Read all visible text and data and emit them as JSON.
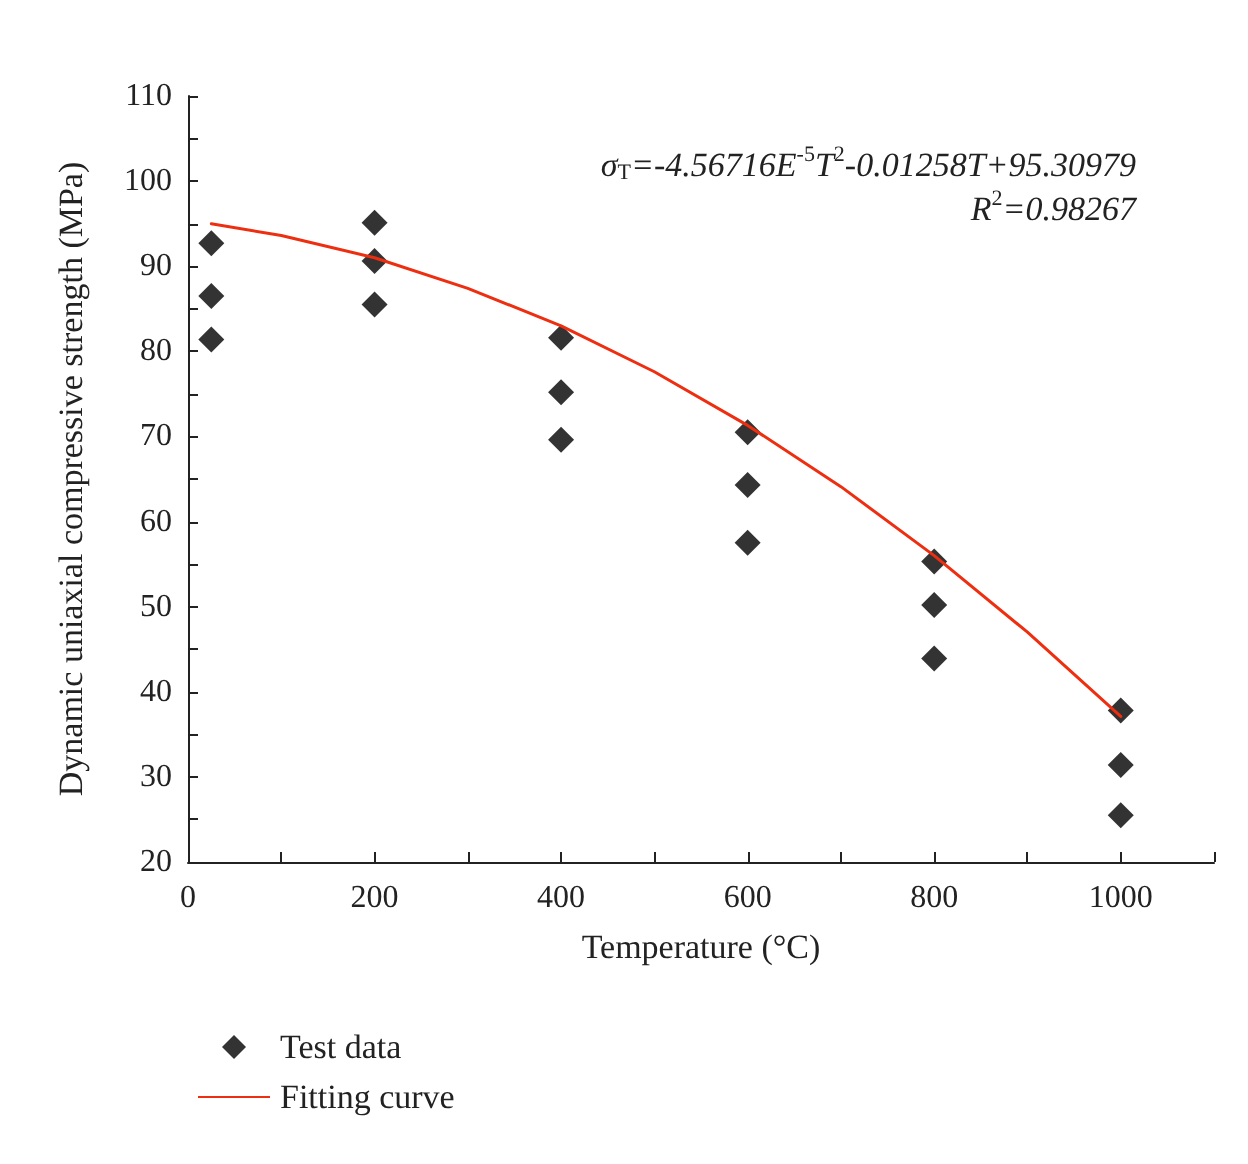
{
  "chart_data": {
    "type": "scatter",
    "xlabel": "Temperature (°C)",
    "ylabel": "Dynamic uniaxial compressive strength (MPa)",
    "xlim": [
      0,
      1100
    ],
    "xticks": [
      0,
      {
        "value": 100,
        "label": null
      },
      200,
      {
        "value": 300,
        "label": null
      },
      400,
      {
        "value": 500,
        "label": null
      },
      600,
      {
        "value": 700,
        "label": null
      },
      800,
      {
        "value": 900,
        "label": null
      },
      1000,
      {
        "value": 1100,
        "label": null
      }
    ],
    "ylim": [
      20,
      110
    ],
    "yticks": [
      20,
      {
        "value": 25,
        "label": null
      },
      30,
      {
        "value": 35,
        "label": null
      },
      40,
      {
        "value": 45,
        "label": null
      },
      50,
      {
        "value": 55,
        "label": null
      },
      60,
      {
        "value": 65,
        "label": null
      },
      70,
      {
        "value": 75,
        "label": null
      },
      80,
      {
        "value": 85,
        "label": null
      },
      90,
      {
        "value": 95,
        "label": null
      },
      100,
      {
        "value": 105,
        "label": null
      },
      110
    ],
    "grid": false,
    "legend": "bottom left",
    "annotations": [
      "σ$_{T}$=-4.56716E$^{-5}$T$^{2}$-0.01258T+95.30979",
      "R$^{2}$=0.98267"
    ],
    "series": [
      {
        "name": "Test data",
        "marker": "diamond",
        "color": "#000000",
        "x": [
          25,
          25,
          25,
          200,
          200,
          200,
          400,
          400,
          400,
          600,
          600,
          600,
          800,
          800,
          800,
          1000,
          1000,
          1000
        ],
        "values": [
          92.7,
          86.5,
          81.4,
          95.1,
          90.6,
          85.5,
          81.6,
          75.2,
          69.6,
          70.5,
          64.3,
          57.5,
          55.3,
          50.2,
          43.9,
          37.8,
          31.4,
          25.5
        ]
      },
      {
        "name": "Fitting curve",
        "type": "line",
        "marker": "none",
        "line_style": "solid",
        "color": "#ee2e10",
        "x": [
          25,
          100,
          200,
          300,
          400,
          500,
          600,
          700,
          800,
          900,
          1000
        ],
        "values": [
          95.0,
          93.6,
          91.0,
          87.4,
          83.0,
          77.6,
          71.3,
          64.1,
          56.0,
          47.0,
          37.1
        ]
      }
    ]
  }
}
